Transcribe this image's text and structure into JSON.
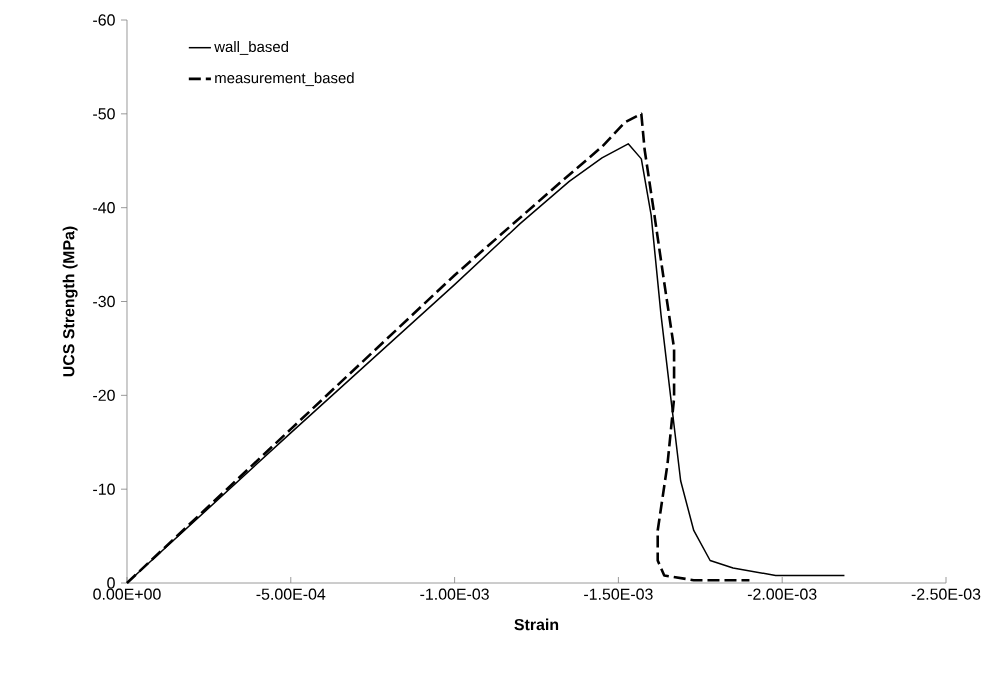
{
  "chart_data": {
    "type": "line",
    "xlabel": "Strain",
    "ylabel": "UCS Strength  (MPa)",
    "xlim": [
      0,
      -0.0025
    ],
    "ylim": [
      0,
      -60
    ],
    "xticks": [
      {
        "value": 0,
        "label": "0.00E+00"
      },
      {
        "value": -0.0005,
        "label": "-5.00E-04"
      },
      {
        "value": -0.001,
        "label": "-1.00E-03"
      },
      {
        "value": -0.0015,
        "label": "-1.50E-03"
      },
      {
        "value": -0.002,
        "label": "-2.00E-03"
      },
      {
        "value": -0.0025,
        "label": "-2.50E-03"
      }
    ],
    "yticks": [
      0,
      -10,
      -20,
      -30,
      -40,
      -50,
      -60
    ],
    "legend": "top left",
    "grid": false,
    "series": [
      {
        "name": "wall_based",
        "color": "#000000",
        "line_style": "solid",
        "x": [
          0,
          -0.0005,
          -0.001,
          -0.0012,
          -0.00135,
          -0.00145,
          -0.00153,
          -0.00157,
          -0.0016,
          -0.00163,
          -0.00166,
          -0.00169,
          -0.00173,
          -0.00178,
          -0.00185,
          -0.00198,
          -0.00219
        ],
        "values": [
          0,
          -16.0,
          -31.8,
          -38.3,
          -42.8,
          -45.3,
          -46.8,
          -45.2,
          -39.2,
          -28.6,
          -19.7,
          -10.9,
          -5.6,
          -2.4,
          -1.6,
          -0.8,
          -0.8
        ]
      },
      {
        "name": "measurement_based",
        "color": "#000000",
        "line_style": "dashed",
        "x": [
          0,
          -0.0005,
          -0.001,
          -0.0013,
          -0.00145,
          -0.00152,
          -0.00157,
          -0.00158,
          -0.00161,
          -0.00164,
          -0.00167,
          -0.00167,
          -0.00165,
          -0.00162,
          -0.00162,
          -0.00164,
          -0.00173,
          -0.0019
        ],
        "values": [
          0,
          -16.4,
          -32.8,
          -42.0,
          -46.5,
          -49.1,
          -50.0,
          -46.2,
          -39.2,
          -32,
          -25.0,
          -19.7,
          -12.7,
          -5.6,
          -2.4,
          -0.8,
          -0.3,
          -0.3
        ]
      }
    ]
  }
}
